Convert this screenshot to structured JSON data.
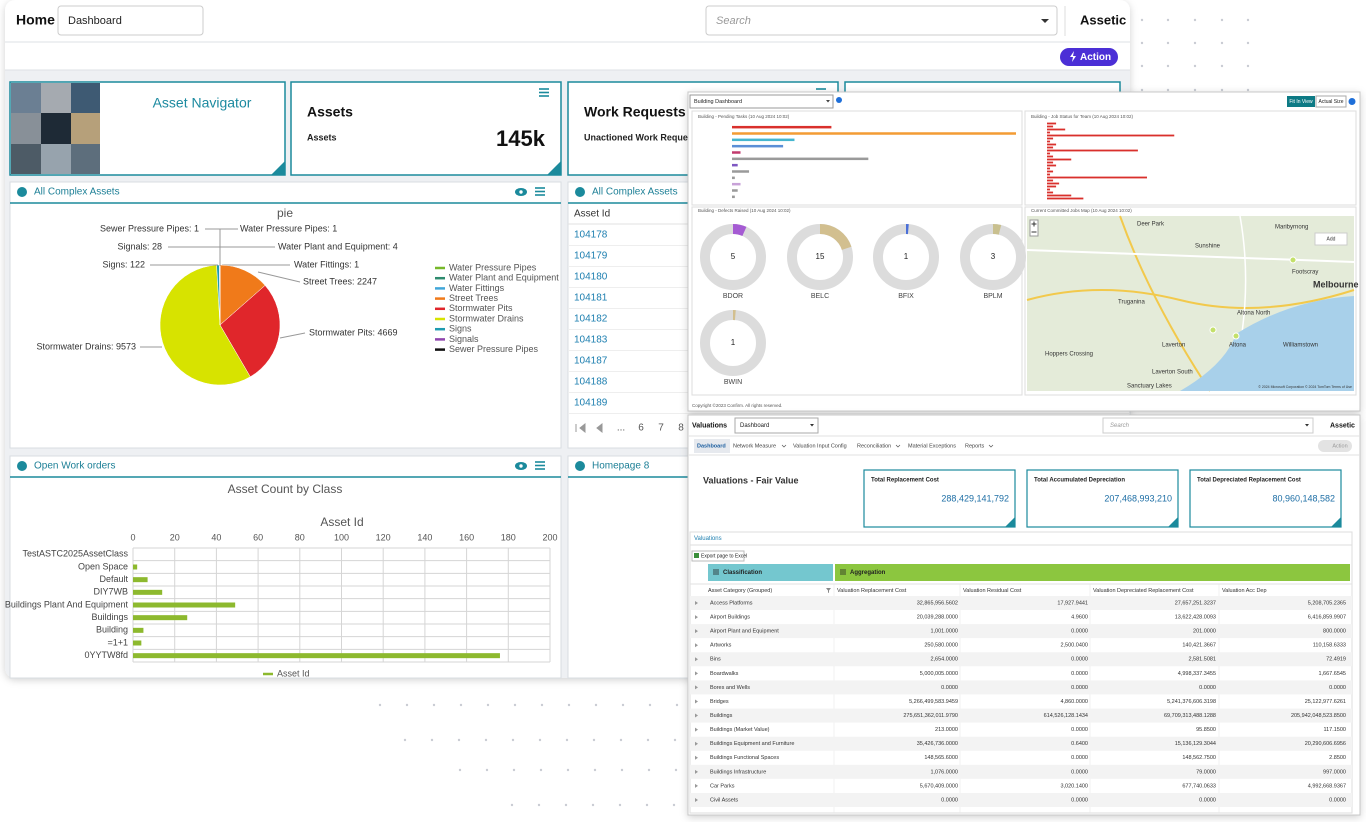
{
  "main": {
    "header": {
      "home": "Home",
      "dashboard": "Dashboard",
      "search": "Search",
      "brand": "Assetic",
      "action": "Action"
    },
    "tiles": {
      "navigator": "Asset Navigator",
      "assets_title": "Assets",
      "assets_label": "Assets",
      "assets_value": "145k",
      "work_title": "Work Requests - U",
      "work_label": "Unactioned Work Requests"
    },
    "pie_panel": {
      "title": "All Complex Assets"
    },
    "list_panel": {
      "title": "All Complex Assets",
      "header": "Asset Id",
      "rows": [
        "104178",
        "104179",
        "104180",
        "104181",
        "104182",
        "104183",
        "104187",
        "104188",
        "104189"
      ],
      "pages": [
        "...",
        "6",
        "7",
        "8"
      ]
    },
    "bar_panel": {
      "title": "Open Work orders"
    },
    "home8_panel": {
      "title": "Homepage 8"
    }
  },
  "chart_data": [
    {
      "type": "pie",
      "title": "pie",
      "categories": [
        "Water Pressure Pipes",
        "Water Plant and Equipment",
        "Water Fittings",
        "Street Trees",
        "Stormwater Pits",
        "Stormwater Drains",
        "Signs",
        "Signals",
        "Sewer Pressure Pipes"
      ],
      "values": [
        1,
        4,
        1,
        2247,
        4669,
        9573,
        122,
        28,
        1
      ],
      "value_labels": [
        "Water Pressure Pipes: 1",
        "Water Plant and Equipment: 4",
        "Water Fittings: 1",
        "Street Trees: 2247",
        "Stormwater Pits: 4669",
        "Stormwater Drains: 9573",
        "Signs: 122",
        "Signals: 28",
        "Sewer Pressure Pipes: 1"
      ],
      "colors": [
        "#77b82a",
        "#2e8b6e",
        "#41a6d9",
        "#f07a1a",
        "#e0262b",
        "#d7e300",
        "#1f9bb0",
        "#8e44ad",
        "#111111"
      ]
    },
    {
      "type": "bar",
      "orientation": "horizontal",
      "title": "Asset Count by Class",
      "x_label": "Asset Id",
      "categories": [
        "TestASTC2025AssetClass",
        "Open Space",
        "Default",
        "DIY7WB",
        "Buildings Plant And Equipment",
        "Buildings",
        "Building",
        "=1+1",
        "0YYTW8fd"
      ],
      "series": [
        {
          "name": "Asset Id",
          "color": "#8db92e",
          "values": [
            0,
            2,
            7,
            14,
            49,
            26,
            5,
            4,
            176
          ]
        }
      ],
      "xlim": [
        0,
        200
      ],
      "xticks": [
        0,
        20,
        40,
        60,
        80,
        100,
        120,
        140,
        160,
        180,
        200
      ],
      "grid": true
    },
    {
      "type": "bar",
      "orientation": "horizontal",
      "title": "Building - Pending Tasks (10 Aug 2024 10:02)",
      "values": [
        35,
        100,
        22,
        18,
        3,
        48,
        2,
        6,
        1,
        3,
        2,
        1
      ],
      "colors": [
        "#d9302c",
        "#f39c34",
        "#45b6cf",
        "#5b8fd6",
        "#c23b6e",
        "#9a9a9a",
        "#7e57c2",
        "#9a9a9a",
        "#9a9a9a",
        "#c8a2d8",
        "#9a9a9a",
        "#9a9a9a"
      ],
      "xlim": [
        0,
        100
      ]
    },
    {
      "type": "bar",
      "orientation": "horizontal",
      "title": "Building - Job Status for Team (10 Aug 2024 10:02)",
      "values": [
        3,
        2,
        6,
        1,
        42,
        2,
        1,
        3,
        2,
        30,
        1,
        2,
        8,
        2,
        3,
        1,
        2,
        1,
        33,
        2,
        4,
        3,
        1,
        2,
        8,
        12
      ],
      "color": "#d9302c",
      "xlim": [
        0,
        100
      ]
    },
    {
      "type": "donut",
      "title": "Building - Defects Raised (10 Aug 2024 10:02)",
      "categories": [
        "BDOR",
        "BELC",
        "BFIX",
        "BPLM",
        "BWIN"
      ],
      "values": [
        5,
        15,
        1,
        3,
        1
      ],
      "colors": [
        "#a55bd3",
        "#d2bf8f",
        "#4a6fd8",
        "#c9c08f",
        "#d2bf8f"
      ]
    }
  ],
  "building": {
    "selector": "Building Dashboard",
    "fit": "Fit In View",
    "actual": "Actual Size",
    "map": {
      "title": "Current Committed Jobs Map (10 Aug 2024 10:02)",
      "add": "Add",
      "places": [
        "Deer Park",
        "Maribyrnong",
        "Sunshine",
        "Footscray",
        "Melbourne",
        "Truganina",
        "Altona North",
        "Laverton",
        "Altona",
        "Williamstown",
        "Hoppers Crossing",
        "Laverton South",
        "Sanctuary Lakes"
      ],
      "attribution": "© 2024 Microsoft Corporation © 2024 TomTom Terms of Use"
    },
    "copyright": "Copyright ©2023 Confirm. All rights reserved."
  },
  "valuations": {
    "title": "Valuations",
    "dashboard": "Dashboard",
    "search": "Search",
    "brand": "Assetic",
    "action": "Action",
    "tabs": [
      "Dashboard",
      "Network Measure",
      "Valuation Input Config",
      "Reconciliation",
      "Material Exceptions",
      "Reports"
    ],
    "heading": "Valuations - Fair Value",
    "cards": [
      {
        "title": "Total Replacement Cost",
        "value": "288,429,141,792"
      },
      {
        "title": "Total Accumulated Depreciation",
        "value": "207,468,993,210"
      },
      {
        "title": "Total Depreciated Replacement Cost",
        "value": "80,960,148,582"
      }
    ],
    "section": "Valuations",
    "export": "Export page to Excel",
    "groups": [
      "Classification",
      "Aggregation"
    ],
    "columns": [
      "Asset Category (Grouped)",
      "Valuation Replacement Cost",
      "Valuation Residual Cost",
      "Valuation Depreciated Replacement Cost",
      "Valuation Acc Dep"
    ],
    "rows": [
      [
        "Access Platforms",
        "32,865,956.5602",
        "17,927.9441",
        "27,657,251.3237",
        "5,208,705.2365"
      ],
      [
        "Airport Buildings",
        "20,039,288.0000",
        "4.9600",
        "13,622,428.0093",
        "6,416,859.9907"
      ],
      [
        "Airport Plant and Equipment",
        "1,001.0000",
        "0.0000",
        "201.0000",
        "800.0000"
      ],
      [
        "Artworks",
        "250,580.0000",
        "2,500.0400",
        "140,421.3667",
        "110,158.6333"
      ],
      [
        "Bins",
        "2,654.0000",
        "0.0000",
        "2,581.5081",
        "72.4919"
      ],
      [
        "Boardwalks",
        "5,000,005.0000",
        "0.0000",
        "4,998,337.3455",
        "1,667.6545"
      ],
      [
        "Bores and Wells",
        "0.0000",
        "0.0000",
        "0.0000",
        "0.0000"
      ],
      [
        "Bridges",
        "5,266,499,583.9459",
        "4,860.0000",
        "5,241,376,606.3198",
        "25,122,977.6261"
      ],
      [
        "Buildings",
        "275,651,362,011.9790",
        "614,526,128.1434",
        "69,709,313,488.1288",
        "205,942,048,523.8500"
      ],
      [
        "Buildings (Market Value)",
        "213.0000",
        "0.0000",
        "95.8500",
        "117.1500"
      ],
      [
        "Buildings Equipment and Furniture",
        "35,426,736.0000",
        "0.6400",
        "15,136,129.3044",
        "20,290,606.6956"
      ],
      [
        "Buildings Functional Spaces",
        "148,565.6000",
        "0.0000",
        "148,562.7500",
        "2.8500"
      ],
      [
        "Buildings Infrastructure",
        "1,076.0000",
        "0.0000",
        "79.0000",
        "997.0000"
      ],
      [
        "Car Parks",
        "5,670,409.0000",
        "3,020.1400",
        "677,740.0633",
        "4,992,668.9367"
      ],
      [
        "Civil Assets",
        "0.0000",
        "0.0000",
        "0.0000",
        "0.0000"
      ]
    ]
  }
}
